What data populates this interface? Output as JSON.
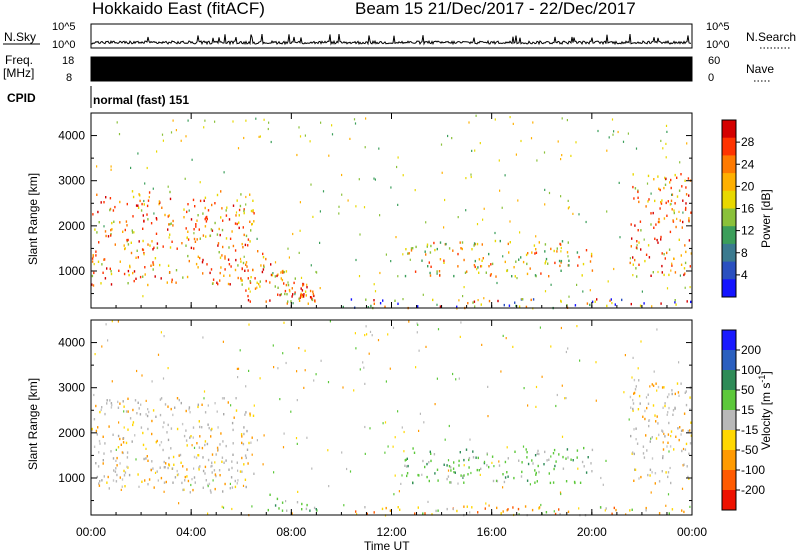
{
  "header": {
    "station": "Hokkaido East (fitACF)",
    "beam_info": "Beam 15  21/Dec/2017 - 22/Dec/2017"
  },
  "nsky": {
    "label": "N.Sky",
    "ticks": [
      "10^5",
      "10^0"
    ],
    "right_ticks": [
      "10^5",
      "10^0"
    ],
    "right_label": "N.Search"
  },
  "freq": {
    "label_line1": "Freq.",
    "label_line2": "[MHz]",
    "ticks": [
      "18",
      "8"
    ],
    "right_ticks": [
      "60",
      "0"
    ],
    "right_label": "Nave"
  },
  "cpid": {
    "label": "CPID",
    "value": "normal (fast) 151"
  },
  "chart_data": [
    {
      "type": "heatmap",
      "title": "",
      "ylabel": "Slant Range [km]",
      "xlabel": "",
      "ylim": [
        180,
        4500
      ],
      "y_ticks": [
        1000,
        2000,
        3000,
        4000
      ],
      "colorbar": {
        "label": "Power [dB]",
        "ticks": [
          "28",
          "24",
          "20",
          "16",
          "12",
          "8",
          "4"
        ],
        "colors": [
          "#d40000",
          "#ff3300",
          "#ff7a00",
          "#ffb000",
          "#e8d800",
          "#8ac13a",
          "#3b9e5a",
          "#3a7a8f",
          "#2a50c0",
          "#1414ff"
        ]
      },
      "echo_regions": [
        {
          "t_start": 0.0,
          "t_end": 6.5,
          "r_min": 700,
          "r_max": 2800,
          "level": "high"
        },
        {
          "t_start": 6.0,
          "t_end": 9.0,
          "r_min": 300,
          "r_max": 1800,
          "level": "high"
        },
        {
          "t_start": 12.5,
          "t_end": 20.0,
          "r_min": 900,
          "r_max": 1700,
          "level": "medium"
        },
        {
          "t_start": 21.5,
          "t_end": 24.0,
          "r_min": 900,
          "r_max": 3200,
          "level": "high"
        },
        {
          "t_start": 10.0,
          "t_end": 24.0,
          "r_min": 180,
          "r_max": 400,
          "level": "mixed"
        }
      ]
    },
    {
      "type": "heatmap",
      "title": "",
      "ylabel": "Slant Range [km]",
      "xlabel": "Time UT",
      "ylim": [
        180,
        4500
      ],
      "y_ticks": [
        1000,
        2000,
        3000,
        4000
      ],
      "x_ticks": [
        "00:00",
        "04:00",
        "08:00",
        "12:00",
        "16:00",
        "20:00",
        "00:00"
      ],
      "colorbar": {
        "label": "Velocity [m s^-1]",
        "ticks": [
          "200",
          "100",
          "50",
          "15",
          "-15",
          "-50",
          "-100",
          "-200"
        ],
        "colors": [
          "#1a1aff",
          "#2a5fbf",
          "#2e8b57",
          "#5cc83a",
          "#b8b8b8",
          "#ffd700",
          "#ff9a00",
          "#ff5a00",
          "#ee1100"
        ]
      },
      "echo_regions": [
        {
          "t_start": 0.0,
          "t_end": 6.5,
          "r_min": 700,
          "r_max": 2800,
          "level": "ground-scatter"
        },
        {
          "t_start": 7.0,
          "t_end": 9.0,
          "r_min": 300,
          "r_max": 700,
          "level": "positive"
        },
        {
          "t_start": 12.5,
          "t_end": 20.0,
          "r_min": 900,
          "r_max": 1700,
          "level": "positive"
        },
        {
          "t_start": 10.5,
          "t_end": 24.0,
          "r_min": 180,
          "r_max": 400,
          "level": "negative"
        },
        {
          "t_start": 21.5,
          "t_end": 24.0,
          "r_min": 900,
          "r_max": 3200,
          "level": "ground-scatter"
        }
      ]
    }
  ]
}
